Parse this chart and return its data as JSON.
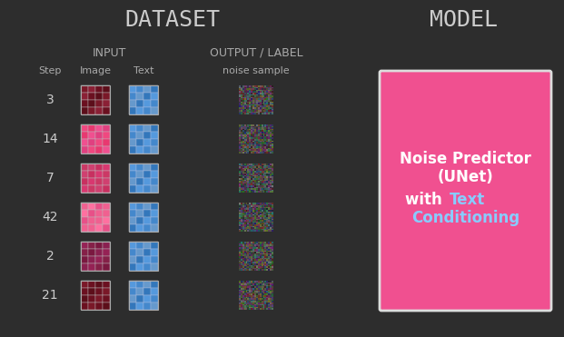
{
  "bg_color": "#2d2d2d",
  "title_dataset": "DATASET",
  "title_model": "MODEL",
  "title_color": "#cccccc",
  "title_fontsize": 18,
  "section_label_color": "#aaaaaa",
  "section_label_fontsize": 9,
  "step_label": "Step",
  "input_label": "INPUT",
  "image_col_label": "Image",
  "text_col_label": "Text",
  "output_label": "OUTPUT / LABEL",
  "noise_label": "noise sample",
  "steps": [
    3,
    14,
    7,
    42,
    2,
    21
  ],
  "image_colors": [
    [
      "#6b1a2a",
      "#7a2035",
      "#5c1520"
    ],
    [
      "#e8427a",
      "#f06090",
      "#d03870"
    ],
    [
      "#cc3365",
      "#e04878",
      "#bb2d5a"
    ],
    [
      "#f05090",
      "#ff6ba0",
      "#e04080"
    ],
    [
      "#882255",
      "#993366",
      "#772045"
    ],
    [
      "#7a2030",
      "#8a2d40",
      "#6a1828"
    ]
  ],
  "text_grid_color": "#5599dd",
  "model_box_color": "#f05090",
  "model_text_color": "#ffffff",
  "model_highlight_color": "#88ccff",
  "model_label_line1": "Noise Predictor",
  "model_label_line2": "(UNet)",
  "model_label_line3": "with ",
  "model_label_highlight": "Text",
  "model_label_line4": "Conditioning",
  "model_fontsize": 12
}
